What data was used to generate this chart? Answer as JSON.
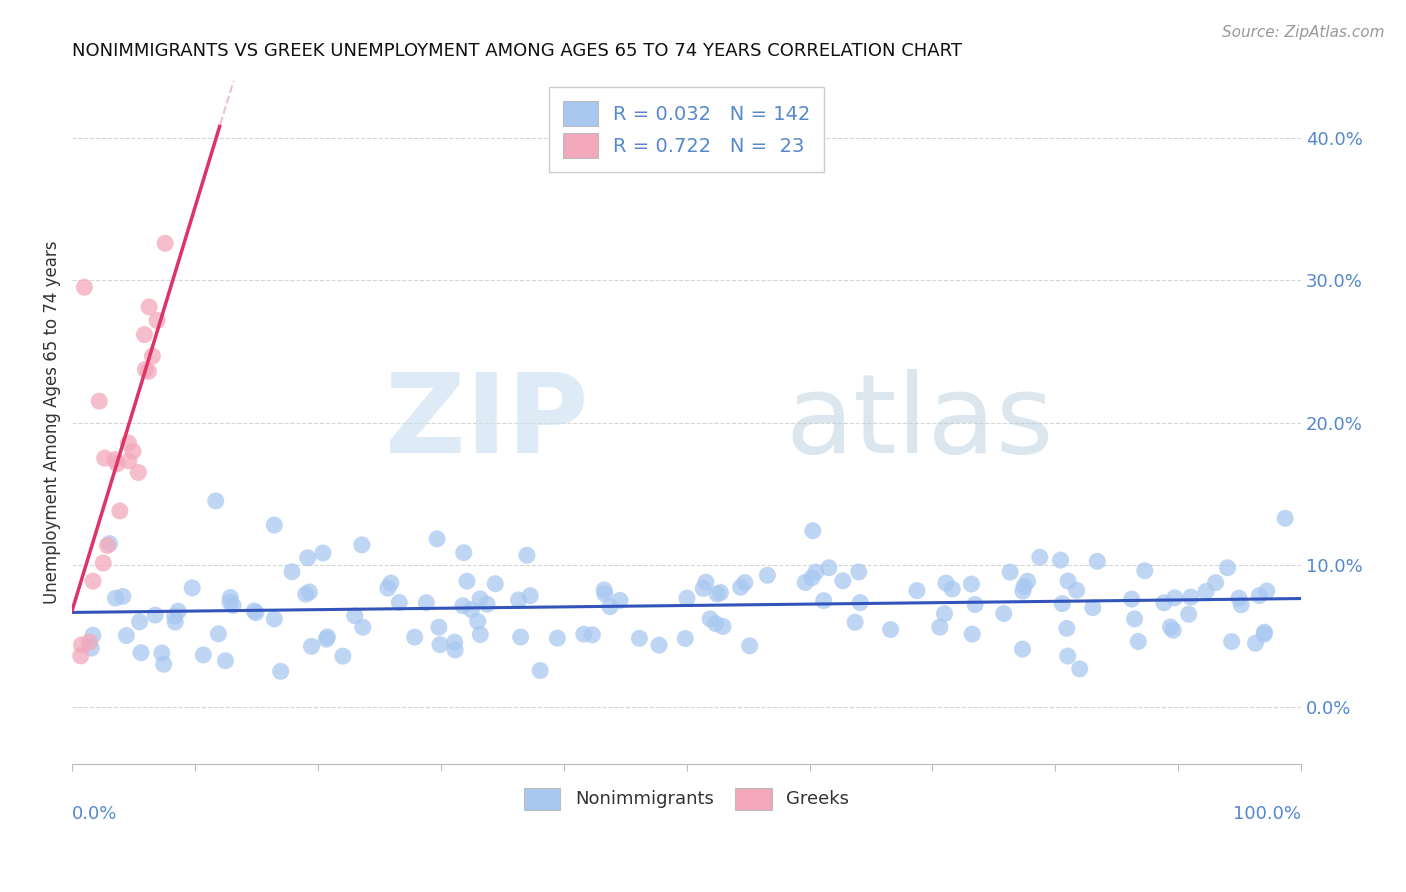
{
  "title": "NONIMMIGRANTS VS GREEK UNEMPLOYMENT AMONG AGES 65 TO 74 YEARS CORRELATION CHART",
  "source": "Source: ZipAtlas.com",
  "ylabel": "Unemployment Among Ages 65 to 74 years",
  "yticks_labels": [
    "0.0%",
    "10.0%",
    "20.0%",
    "30.0%",
    "40.0%"
  ],
  "ytick_vals": [
    0.0,
    0.1,
    0.2,
    0.3,
    0.4
  ],
  "xlim": [
    0.0,
    1.0
  ],
  "ylim": [
    -0.04,
    0.44
  ],
  "color_nonimm": "#a8c8f0",
  "color_greeks": "#f4a8bb",
  "color_nonimm_line": "#3355bb",
  "color_greeks_line": "#dd3366",
  "color_greeks_dashed": "#f0b8c8",
  "color_ytick": "#5588cc",
  "color_grid": "#cccccc",
  "watermark_zip_color": "#c8dff0",
  "watermark_atlas_color": "#b8cfe0",
  "nonimm_seed": 42,
  "greeks_seed": 77,
  "n_nonimm": 142,
  "n_greeks": 23
}
